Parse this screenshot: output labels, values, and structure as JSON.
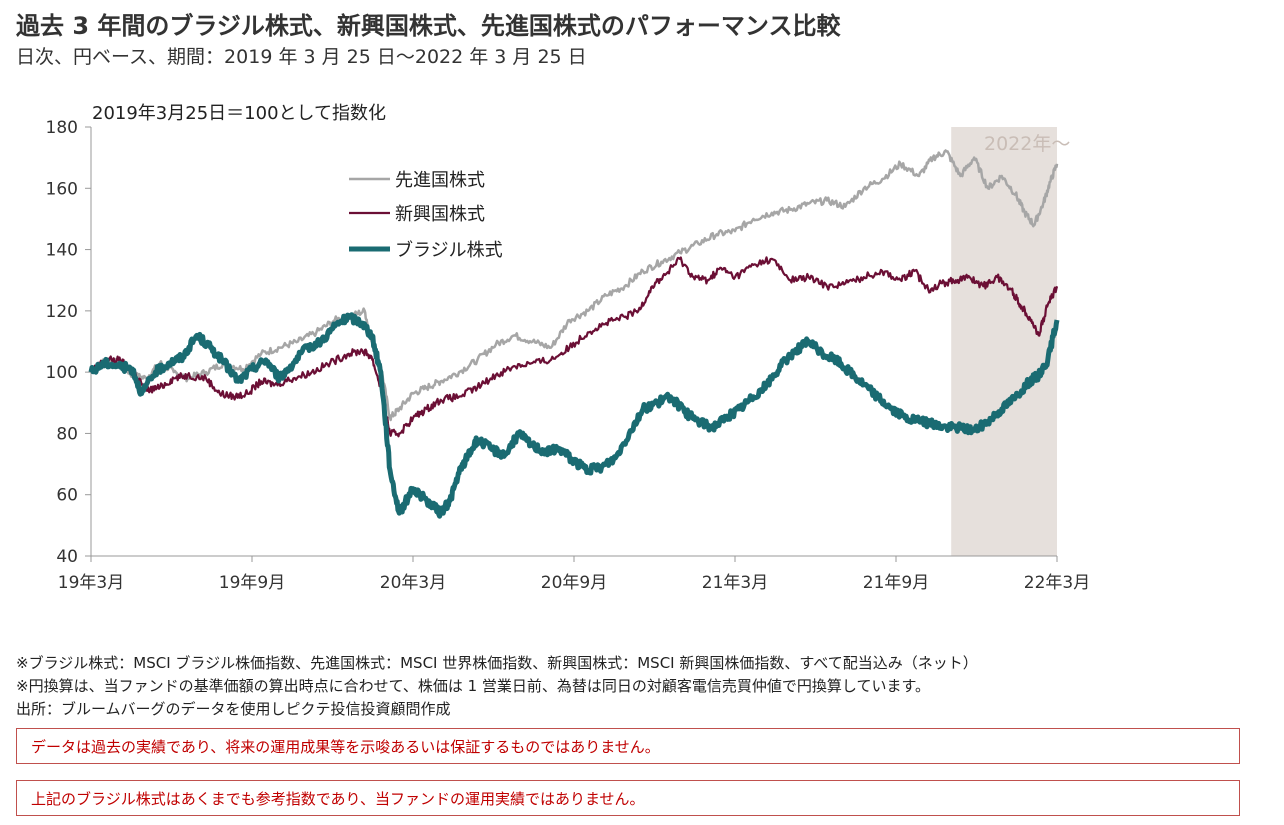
{
  "header": {
    "title": "過去 3 年間のブラジル株式、新興国株式、先進国株式のパフォーマンス比較",
    "subtitle": "日次、円ベース、期間：2019 年 3 月 25 日～2022 年 3 月 25 日"
  },
  "chart_data": {
    "type": "line",
    "note": "2019年3月25日＝100として指数化",
    "ylim": [
      40,
      180
    ],
    "yticks": [
      40,
      60,
      80,
      100,
      120,
      140,
      160,
      180
    ],
    "xticks": [
      "19年3月",
      "19年9月",
      "20年3月",
      "20年9月",
      "21年3月",
      "21年9月",
      "22年3月"
    ],
    "shaded_region_label": "2022年～",
    "shaded_region_color": "#e6e0dc",
    "legend_position": "top-left",
    "grid": false,
    "series": [
      {
        "name": "先進国株式",
        "color": "#a6a6a6",
        "points": [
          [
            0,
            100
          ],
          [
            0.3,
            104
          ],
          [
            0.6,
            103
          ],
          [
            0.9,
            99
          ],
          [
            1.2,
            98
          ],
          [
            1.5,
            103
          ],
          [
            1.8,
            100
          ],
          [
            2.1,
            98
          ],
          [
            2.5,
            100
          ],
          [
            2.9,
            103
          ],
          [
            3.3,
            101
          ],
          [
            3.7,
            106
          ],
          [
            4.1,
            108
          ],
          [
            4.5,
            110
          ],
          [
            4.9,
            113
          ],
          [
            5.3,
            117
          ],
          [
            5.6,
            118
          ],
          [
            5.95,
            120
          ],
          [
            6.1,
            110
          ],
          [
            6.3,
            102
          ],
          [
            6.5,
            85
          ],
          [
            6.7,
            88
          ],
          [
            7.0,
            93
          ],
          [
            7.3,
            95
          ],
          [
            7.6,
            97
          ],
          [
            8.0,
            100
          ],
          [
            8.4,
            104
          ],
          [
            8.8,
            109
          ],
          [
            9.2,
            112
          ],
          [
            9.6,
            110
          ],
          [
            10.0,
            108
          ],
          [
            10.4,
            117
          ],
          [
            10.8,
            120
          ],
          [
            11.2,
            125
          ],
          [
            11.6,
            128
          ],
          [
            12.0,
            133
          ],
          [
            12.4,
            136
          ],
          [
            12.8,
            139
          ],
          [
            13.2,
            142
          ],
          [
            13.6,
            145
          ],
          [
            14.0,
            146
          ],
          [
            14.4,
            150
          ],
          [
            14.8,
            152
          ],
          [
            15.2,
            153
          ],
          [
            15.6,
            155
          ],
          [
            16.0,
            156
          ],
          [
            16.4,
            154
          ],
          [
            16.8,
            160
          ],
          [
            17.2,
            163
          ],
          [
            17.6,
            168
          ],
          [
            18.0,
            164
          ],
          [
            18.3,
            170
          ],
          [
            18.6,
            172
          ],
          [
            18.9,
            164
          ],
          [
            19.2,
            170
          ],
          [
            19.5,
            160
          ],
          [
            19.8,
            164
          ],
          [
            20.1,
            158
          ],
          [
            20.3,
            152
          ],
          [
            20.5,
            148
          ],
          [
            20.7,
            155
          ],
          [
            20.85,
            162
          ],
          [
            21.0,
            168
          ]
        ]
      },
      {
        "name": "新興国株式",
        "color": "#6b0f35",
        "points": [
          [
            0,
            100
          ],
          [
            0.3,
            104
          ],
          [
            0.6,
            104
          ],
          [
            0.9,
            101
          ],
          [
            1.2,
            94
          ],
          [
            1.5,
            95
          ],
          [
            1.8,
            98
          ],
          [
            2.1,
            99
          ],
          [
            2.5,
            98
          ],
          [
            2.8,
            93
          ],
          [
            3.1,
            92
          ],
          [
            3.4,
            93
          ],
          [
            3.7,
            97
          ],
          [
            4.0,
            96
          ],
          [
            4.4,
            98
          ],
          [
            4.8,
            100
          ],
          [
            5.2,
            103
          ],
          [
            5.6,
            106
          ],
          [
            5.9,
            107
          ],
          [
            6.1,
            105
          ],
          [
            6.3,
            95
          ],
          [
            6.5,
            80
          ],
          [
            6.7,
            80
          ],
          [
            7.0,
            85
          ],
          [
            7.3,
            88
          ],
          [
            7.6,
            91
          ],
          [
            8.0,
            92
          ],
          [
            8.4,
            95
          ],
          [
            8.8,
            99
          ],
          [
            9.2,
            102
          ],
          [
            9.6,
            103
          ],
          [
            10.0,
            104
          ],
          [
            10.4,
            108
          ],
          [
            10.8,
            113
          ],
          [
            11.2,
            116
          ],
          [
            11.6,
            118
          ],
          [
            11.9,
            120
          ],
          [
            12.2,
            128
          ],
          [
            12.5,
            132
          ],
          [
            12.8,
            137
          ],
          [
            13.1,
            131
          ],
          [
            13.4,
            130
          ],
          [
            13.7,
            134
          ],
          [
            14.0,
            131
          ],
          [
            14.4,
            135
          ],
          [
            14.8,
            137
          ],
          [
            15.2,
            130
          ],
          [
            15.6,
            131
          ],
          [
            16.0,
            128
          ],
          [
            16.4,
            129
          ],
          [
            16.8,
            131
          ],
          [
            17.2,
            133
          ],
          [
            17.6,
            130
          ],
          [
            17.9,
            133
          ],
          [
            18.2,
            127
          ],
          [
            18.5,
            129
          ],
          [
            18.8,
            130
          ],
          [
            19.1,
            131
          ],
          [
            19.4,
            128
          ],
          [
            19.7,
            131
          ],
          [
            20.0,
            127
          ],
          [
            20.2,
            122
          ],
          [
            20.4,
            118
          ],
          [
            20.6,
            112
          ],
          [
            20.8,
            122
          ],
          [
            21.0,
            128
          ]
        ]
      },
      {
        "name": "ブラジル株式",
        "color": "#1a6b72",
        "points": [
          [
            0,
            100
          ],
          [
            0.3,
            103
          ],
          [
            0.6,
            102
          ],
          [
            0.9,
            101
          ],
          [
            1.1,
            93
          ],
          [
            1.4,
            100
          ],
          [
            1.7,
            103
          ],
          [
            2.0,
            105
          ],
          [
            2.3,
            112
          ],
          [
            2.6,
            108
          ],
          [
            2.9,
            103
          ],
          [
            3.2,
            97
          ],
          [
            3.5,
            101
          ],
          [
            3.8,
            104
          ],
          [
            4.1,
            98
          ],
          [
            4.4,
            103
          ],
          [
            4.7,
            108
          ],
          [
            5.0,
            110
          ],
          [
            5.3,
            115
          ],
          [
            5.6,
            118
          ],
          [
            5.9,
            116
          ],
          [
            6.1,
            112
          ],
          [
            6.3,
            100
          ],
          [
            6.5,
            68
          ],
          [
            6.7,
            54
          ],
          [
            7.0,
            62
          ],
          [
            7.3,
            58
          ],
          [
            7.6,
            54
          ],
          [
            7.8,
            58
          ],
          [
            8.0,
            67
          ],
          [
            8.2,
            73
          ],
          [
            8.4,
            78
          ],
          [
            8.7,
            75
          ],
          [
            9.0,
            73
          ],
          [
            9.3,
            80
          ],
          [
            9.6,
            76
          ],
          [
            9.9,
            74
          ],
          [
            10.2,
            75
          ],
          [
            10.5,
            71
          ],
          [
            10.8,
            68
          ],
          [
            11.1,
            69
          ],
          [
            11.4,
            72
          ],
          [
            11.7,
            80
          ],
          [
            12.0,
            88
          ],
          [
            12.3,
            90
          ],
          [
            12.6,
            92
          ],
          [
            12.9,
            87
          ],
          [
            13.2,
            84
          ],
          [
            13.5,
            82
          ],
          [
            13.8,
            85
          ],
          [
            14.1,
            88
          ],
          [
            14.4,
            92
          ],
          [
            14.7,
            96
          ],
          [
            15.0,
            102
          ],
          [
            15.3,
            107
          ],
          [
            15.6,
            110
          ],
          [
            15.9,
            106
          ],
          [
            16.2,
            104
          ],
          [
            16.5,
            100
          ],
          [
            16.8,
            96
          ],
          [
            17.1,
            92
          ],
          [
            17.4,
            88
          ],
          [
            17.7,
            85
          ],
          [
            18.0,
            84
          ],
          [
            18.3,
            83
          ],
          [
            18.6,
            82
          ],
          [
            18.9,
            82
          ],
          [
            19.2,
            81
          ],
          [
            19.5,
            84
          ],
          [
            19.8,
            88
          ],
          [
            20.1,
            92
          ],
          [
            20.4,
            97
          ],
          [
            20.6,
            99
          ],
          [
            20.8,
            104
          ],
          [
            21.0,
            117
          ]
        ]
      }
    ]
  },
  "footnotes": [
    "※ブラジル株式：MSCI ブラジル株価指数、先進国株式：MSCI 世界株価指数、新興国株式：MSCI 新興国株価指数、すべて配当込み（ネット）",
    "※円換算は、当ファンドの基準価額の算出時点に合わせて、株価は 1 営業日前、為替は同日の対顧客電信売買仲値で円換算しています。",
    "出所：ブルームバーグのデータを使用しピクテ投信投資顧問作成"
  ],
  "disclaimers": [
    "データは過去の実績であり、将来の運用成果等を示唆あるいは保証するものではありません。",
    "上記のブラジル株式はあくまでも参考指数であり、当ファンドの運用実績ではありません。"
  ]
}
